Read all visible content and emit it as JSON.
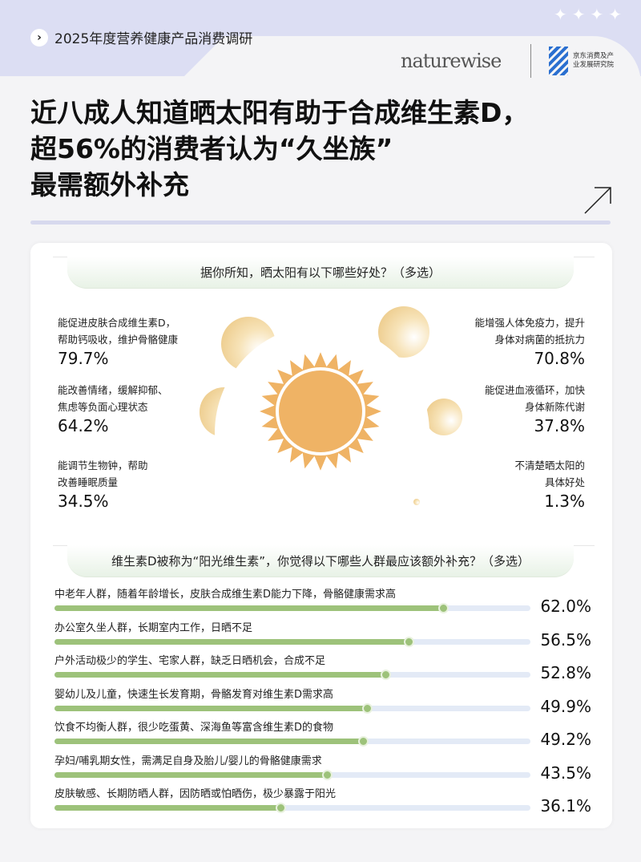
{
  "header": {
    "kicker": "2025年度营养健康产品消费调研",
    "logo_naturewise": "naturewise",
    "logo_institute": "京东消费及产业发展研究院",
    "stars": "✦✦✦✦",
    "title_lines": [
      "近八成人知道晒太阳有助于合成维生素D，",
      "超56%的消费者认为“久坐族”",
      "最需额外补充"
    ]
  },
  "colors": {
    "bar": "#9dc27a",
    "track": "#e3eaf6",
    "sun": "#efb365",
    "background": "#dcdff2"
  },
  "chart_data": [
    {
      "type": "bubble",
      "title": "据你所知，晒太阳有以下哪些好处？（多选）",
      "unit": "%",
      "items": [
        {
          "label": [
            "能促进皮肤合成维生素D，",
            "帮助钙吸收，维护骨骼健康"
          ],
          "value": 79.7,
          "pct": "79.7%"
        },
        {
          "label": [
            "能改善情绪，缓解抑郁、",
            "焦虑等负面心理状态"
          ],
          "value": 64.2,
          "pct": "64.2%"
        },
        {
          "label": [
            "能调节生物钟，帮助",
            "改善睡眠质量"
          ],
          "value": 34.5,
          "pct": "34.5%"
        },
        {
          "label": [
            "能增强人体免疫力，提升",
            "身体对病菌的抵抗力"
          ],
          "value": 70.8,
          "pct": "70.8%"
        },
        {
          "label": [
            "能促进血液循环，加快",
            "身体新陈代谢"
          ],
          "value": 37.8,
          "pct": "37.8%"
        },
        {
          "label": [
            "不清楚晒太阳的",
            "具体好处"
          ],
          "value": 1.3,
          "pct": "1.3%"
        }
      ]
    },
    {
      "type": "bar",
      "orientation": "horizontal",
      "title": "维生素D被称为“阳光维生素”，你觉得以下哪些人群最应该额外补充？（多选）",
      "unit": "%",
      "xlim": [
        0,
        76
      ],
      "categories": [
        "中老年人群，随着年龄增长，皮肤合成维生素D能力下降，骨骼健康需求高",
        "办公室久坐人群，长期室内工作，日晒不足",
        "户外活动极少的学生、宅家人群，缺乏日晒机会，合成不足",
        "婴幼儿及儿童，快速生长发育期，骨骼发育对维生素D需求高",
        "饮食不均衡人群，很少吃蛋黄、深海鱼等富含维生素D的食物",
        "孕妇/哺乳期女性，需满足自身及胎儿/婴儿的骨骼健康需求",
        "皮肤敏感、长期防晒人群，因防晒或怕晒伤，极少暴露于阳光"
      ],
      "values": [
        62.0,
        56.5,
        52.8,
        49.9,
        49.2,
        43.5,
        36.1
      ],
      "labels": [
        "62.0%",
        "56.5%",
        "52.8%",
        "49.9%",
        "49.2%",
        "43.5%",
        "36.1%"
      ]
    }
  ]
}
